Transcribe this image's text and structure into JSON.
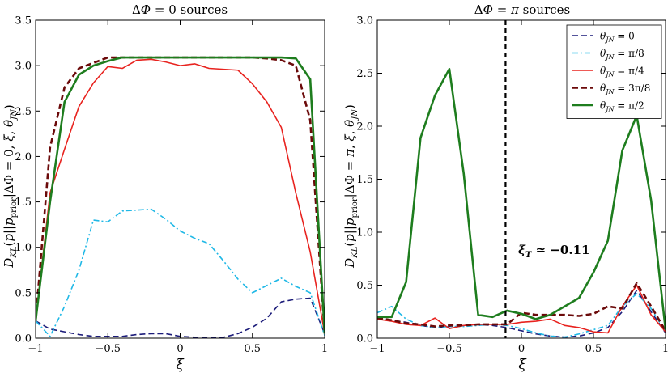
{
  "chart_data": [
    {
      "type": "line",
      "title": "ΔΦ = 0 sources",
      "xlabel": "ξ",
      "ylabel": "D_KL(p||p_prior|ΔΦ = 0, ξ, θ_JN)",
      "xlim": [
        -1,
        1
      ],
      "ylim": [
        0,
        3.5
      ],
      "xticks": [
        -1,
        -0.5,
        0,
        0.5,
        1
      ],
      "xtick_labels": [
        "−1",
        "−0.5",
        "0",
        "0.5",
        "1"
      ],
      "yticks": [
        0,
        0.5,
        1.0,
        1.5,
        2.0,
        2.5,
        3.0,
        3.5
      ],
      "ytick_labels": [
        "0.0",
        "0.5",
        "1.0",
        "1.5",
        "2.0",
        "2.5",
        "3.0",
        "3.5"
      ],
      "x": [
        -1,
        -0.9,
        -0.8,
        -0.7,
        -0.6,
        -0.5,
        -0.4,
        -0.3,
        -0.2,
        -0.1,
        0,
        0.1,
        0.2,
        0.3,
        0.4,
        0.5,
        0.6,
        0.7,
        0.8,
        0.9,
        1
      ],
      "series": [
        {
          "name": "θJN = 0",
          "style": "dashed",
          "color": "#1c1c7a",
          "width": 1.6,
          "values": [
            0.19,
            0.1,
            0.07,
            0.04,
            0.02,
            0.02,
            0.02,
            0.04,
            0.05,
            0.05,
            0.02,
            0.01,
            0.01,
            0.01,
            0.05,
            0.12,
            0.22,
            0.4,
            0.43,
            0.44,
            0.05
          ]
        },
        {
          "name": "θJN = π/8",
          "style": "dashdot",
          "color": "#1fb8e6",
          "width": 1.6,
          "values": [
            0.19,
            0.02,
            0.35,
            0.75,
            1.3,
            1.28,
            1.4,
            1.41,
            1.42,
            1.31,
            1.18,
            1.1,
            1.04,
            0.85,
            0.65,
            0.5,
            0.58,
            0.66,
            0.57,
            0.5,
            0.03
          ]
        },
        {
          "name": "θJN = π/4",
          "style": "solid",
          "color": "#e8231f",
          "width": 1.6,
          "values": [
            0.19,
            1.6,
            2.08,
            2.55,
            2.81,
            2.99,
            2.97,
            3.06,
            3.07,
            3.04,
            3.0,
            3.02,
            2.97,
            2.96,
            2.95,
            2.8,
            2.6,
            2.32,
            1.6,
            0.95,
            0.05
          ]
        },
        {
          "name": "θJN = 3π/8",
          "style": "dashed",
          "color": "#6b0a0a",
          "width": 2.6,
          "values": [
            0.19,
            2.1,
            2.76,
            2.97,
            3.03,
            3.09,
            3.09,
            3.09,
            3.09,
            3.09,
            3.09,
            3.09,
            3.09,
            3.09,
            3.09,
            3.09,
            3.08,
            3.06,
            3.0,
            2.4,
            0.05
          ]
        },
        {
          "name": "θJN = π/2",
          "style": "solid",
          "color": "#1e7d1e",
          "width": 2.6,
          "values": [
            0.19,
            1.5,
            2.6,
            2.9,
            3.0,
            3.05,
            3.09,
            3.09,
            3.09,
            3.09,
            3.09,
            3.09,
            3.09,
            3.09,
            3.09,
            3.09,
            3.09,
            3.09,
            3.08,
            2.85,
            0.05
          ]
        }
      ]
    },
    {
      "type": "line",
      "title": "ΔΦ = π sources",
      "xlabel": "ξ",
      "ylabel": "D_KL(p||p_prior|ΔΦ = π, ξ, θ_JN)",
      "xlim": [
        -1,
        1
      ],
      "ylim": [
        0,
        3.0
      ],
      "xticks": [
        -1,
        -0.5,
        0,
        0.5,
        1
      ],
      "xtick_labels": [
        "−1",
        "−0.5",
        "0",
        "0.5",
        "1"
      ],
      "yticks": [
        0,
        0.5,
        1.0,
        1.5,
        2.0,
        2.5,
        3.0
      ],
      "ytick_labels": [
        "0.0",
        "0.5",
        "1.0",
        "1.5",
        "2.0",
        "2.5",
        "3.0"
      ],
      "legend": "top-right",
      "vline": {
        "x": -0.11,
        "label": "ξT ≃ −0.11"
      },
      "x": [
        -1,
        -0.9,
        -0.8,
        -0.7,
        -0.6,
        -0.5,
        -0.4,
        -0.3,
        -0.2,
        -0.1,
        0,
        0.1,
        0.2,
        0.3,
        0.4,
        0.5,
        0.6,
        0.7,
        0.8,
        0.9,
        1
      ],
      "series": [
        {
          "name": "θJN = 0",
          "style": "dashed",
          "color": "#1c1c7a",
          "width": 1.6,
          "values": [
            0.2,
            0.17,
            0.15,
            0.12,
            0.1,
            0.11,
            0.13,
            0.13,
            0.12,
            0.1,
            0.07,
            0.04,
            0.02,
            0.01,
            0.02,
            0.05,
            0.1,
            0.25,
            0.45,
            0.25,
            0.05
          ]
        },
        {
          "name": "θJN = π/8",
          "style": "dashdot",
          "color": "#1fb8e6",
          "width": 1.6,
          "values": [
            0.24,
            0.3,
            0.18,
            0.12,
            0.1,
            0.11,
            0.11,
            0.12,
            0.13,
            0.12,
            0.09,
            0.05,
            0.02,
            0.01,
            0.04,
            0.08,
            0.12,
            0.3,
            0.42,
            0.28,
            0.06
          ]
        },
        {
          "name": "θJN = π/4",
          "style": "solid",
          "color": "#e8231f",
          "width": 1.6,
          "values": [
            0.18,
            0.16,
            0.13,
            0.12,
            0.19,
            0.09,
            0.12,
            0.13,
            0.13,
            0.13,
            0.15,
            0.16,
            0.18,
            0.12,
            0.1,
            0.06,
            0.05,
            0.3,
            0.5,
            0.22,
            0.06
          ]
        },
        {
          "name": "θJN = 3π/8",
          "style": "dashed",
          "color": "#6b0a0a",
          "width": 2.6,
          "values": [
            0.19,
            0.17,
            0.14,
            0.13,
            0.11,
            0.12,
            0.12,
            0.13,
            0.13,
            0.13,
            0.24,
            0.22,
            0.22,
            0.22,
            0.21,
            0.23,
            0.3,
            0.28,
            0.52,
            0.3,
            0.07
          ]
        },
        {
          "name": "θJN = π/2",
          "style": "solid",
          "color": "#1e7d1e",
          "width": 2.6,
          "values": [
            0.2,
            0.2,
            0.53,
            1.89,
            2.29,
            2.54,
            1.55,
            0.22,
            0.2,
            0.26,
            0.23,
            0.18,
            0.22,
            0.3,
            0.38,
            0.62,
            0.92,
            1.77,
            2.1,
            1.3,
            0.08
          ]
        }
      ]
    }
  ]
}
